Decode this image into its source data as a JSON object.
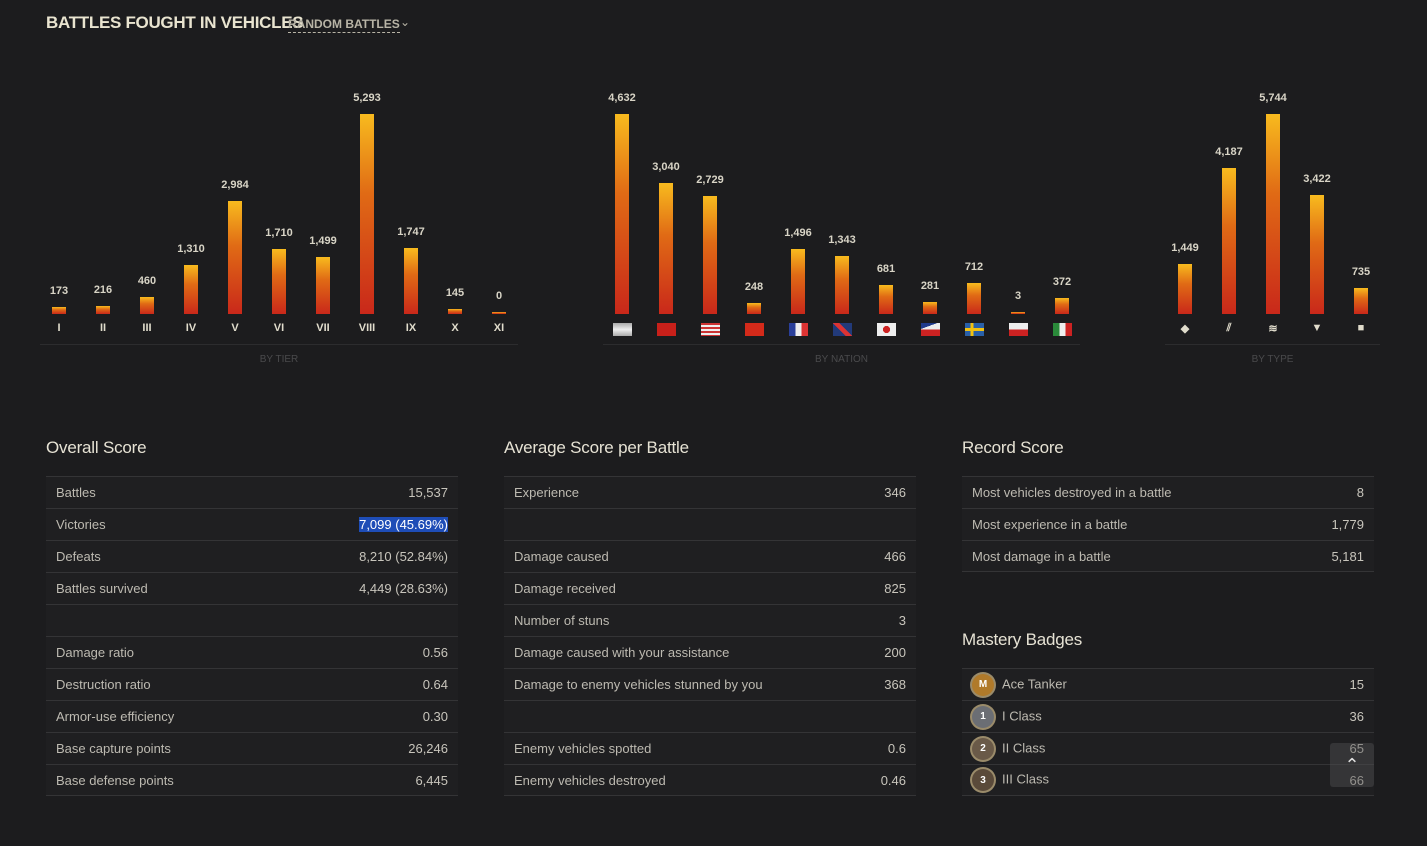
{
  "header": {
    "title": "BATTLES FOUGHT IN VEHICLES",
    "mode": "RANDOM BATTLES"
  },
  "chart_data": [
    {
      "type": "bar",
      "caption": "BY TIER",
      "categories": [
        "I",
        "II",
        "III",
        "IV",
        "V",
        "VI",
        "VII",
        "VIII",
        "IX",
        "X",
        "XI"
      ],
      "values": [
        173,
        216,
        460,
        1310,
        2984,
        1710,
        1499,
        5293,
        1747,
        145,
        0
      ],
      "value_labels": [
        "173",
        "216",
        "460",
        "1,310",
        "2,984",
        "1,710",
        "1,499",
        "5,293",
        "1,747",
        "145",
        "0"
      ]
    },
    {
      "type": "bar",
      "caption": "BY NATION",
      "categories": [
        "germany",
        "ussr",
        "usa",
        "china",
        "france",
        "uk",
        "japan",
        "czech",
        "sweden",
        "poland",
        "italy"
      ],
      "values": [
        4632,
        3040,
        2729,
        248,
        1496,
        1343,
        681,
        281,
        712,
        3,
        372
      ],
      "value_labels": [
        "4,632",
        "3,040",
        "2,729",
        "248",
        "1,496",
        "1,343",
        "681",
        "281",
        "712",
        "3",
        "372"
      ]
    },
    {
      "type": "bar",
      "caption": "BY TYPE",
      "categories": [
        "light-tank-icon",
        "medium-tank-icon",
        "heavy-tank-icon",
        "tank-destroyer-icon",
        "spg-icon"
      ],
      "values": [
        1449,
        4187,
        5744,
        3422,
        735
      ],
      "value_labels": [
        "1,449",
        "4,187",
        "5,744",
        "3,422",
        "735"
      ]
    }
  ],
  "overall": {
    "title": "Overall Score",
    "rows": [
      {
        "label": "Battles",
        "value": "15,537"
      },
      {
        "label": "Victories",
        "value": "7,099 (45.69%)",
        "highlight": true
      },
      {
        "label": "Defeats",
        "value": "8,210 (52.84%)"
      },
      {
        "label": "Battles survived",
        "value": "4,449 (28.63%)"
      },
      {
        "label": "",
        "value": ""
      },
      {
        "label": "Damage ratio",
        "value": "0.56"
      },
      {
        "label": "Destruction ratio",
        "value": "0.64"
      },
      {
        "label": "Armor-use efficiency",
        "value": "0.30"
      },
      {
        "label": "Base capture points",
        "value": "26,246"
      },
      {
        "label": "Base defense points",
        "value": "6,445"
      }
    ]
  },
  "average": {
    "title": "Average Score per Battle",
    "rows": [
      {
        "label": "Experience",
        "value": "346"
      },
      {
        "label": "",
        "value": ""
      },
      {
        "label": "Damage caused",
        "value": "466"
      },
      {
        "label": "Damage received",
        "value": "825"
      },
      {
        "label": "Number of stuns",
        "value": "3"
      },
      {
        "label": "Damage caused with your assistance",
        "value": "200"
      },
      {
        "label": "Damage to enemy vehicles stunned by you",
        "value": "368"
      },
      {
        "label": "",
        "value": ""
      },
      {
        "label": "Enemy vehicles spotted",
        "value": "0.6"
      },
      {
        "label": "Enemy vehicles destroyed",
        "value": "0.46"
      }
    ]
  },
  "record": {
    "title": "Record Score",
    "rows": [
      {
        "label": "Most vehicles destroyed in a battle",
        "value": "8"
      },
      {
        "label": "Most experience in a battle",
        "value": "1,779"
      },
      {
        "label": "Most damage in a battle",
        "value": "5,181"
      }
    ]
  },
  "mastery": {
    "title": "Mastery Badges",
    "rows": [
      {
        "badge": "M",
        "label": "Ace Tanker",
        "value": "15",
        "color": "#b07a2a"
      },
      {
        "badge": "1",
        "label": "I Class",
        "value": "36",
        "color": "#6b6e74"
      },
      {
        "badge": "2",
        "label": "II Class",
        "value": "65",
        "color": "#6a5a48"
      },
      {
        "badge": "3",
        "label": "III Class",
        "value": "66",
        "color": "#5a4a3a"
      }
    ]
  },
  "scroll_top_icon": "double-chevron-up-icon"
}
